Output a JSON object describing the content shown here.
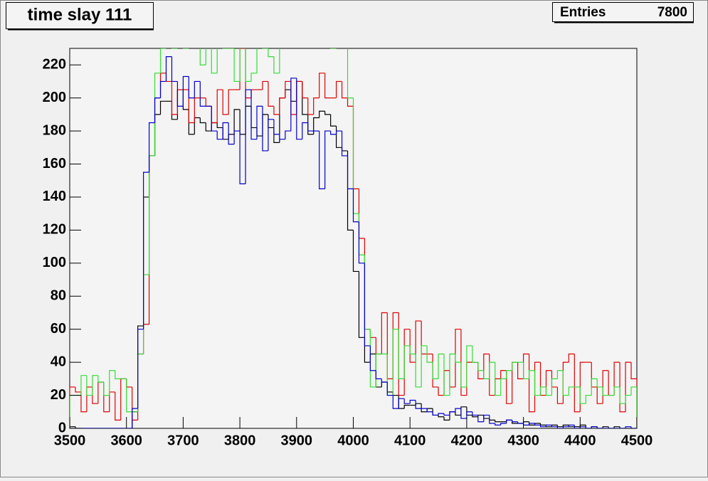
{
  "chart_data": {
    "type": "histogram",
    "title": "time slay 111",
    "stats": {
      "label": "Entries",
      "value": 7800
    },
    "bins": [
      3500,
      3510,
      3520,
      3530,
      3540,
      3550,
      3560,
      3570,
      3580,
      3590,
      3600,
      3610,
      3620,
      3630,
      3640,
      3650,
      3660,
      3670,
      3680,
      3690,
      3700,
      3710,
      3720,
      3730,
      3740,
      3750,
      3760,
      3770,
      3780,
      3790,
      3800,
      3810,
      3820,
      3830,
      3840,
      3850,
      3860,
      3870,
      3880,
      3890,
      3900,
      3910,
      3920,
      3930,
      3940,
      3950,
      3960,
      3970,
      3980,
      3990,
      4000,
      4010,
      4020,
      4030,
      4040,
      4050,
      4060,
      4070,
      4080,
      4090,
      4100,
      4110,
      4120,
      4130,
      4140,
      4150,
      4160,
      4170,
      4180,
      4190,
      4200,
      4210,
      4220,
      4230,
      4240,
      4250,
      4260,
      4270,
      4280,
      4290,
      4300,
      4310,
      4320,
      4330,
      4340,
      4350,
      4360,
      4370,
      4380,
      4390,
      4400,
      4410,
      4420,
      4430,
      4440,
      4450,
      4460,
      4470,
      4480,
      4490,
      4500
    ],
    "series": [
      {
        "color": "#000000",
        "values": [
          1,
          0,
          0,
          0,
          0,
          0,
          0,
          0,
          0,
          0,
          0,
          10,
          62,
          140,
          165,
          190,
          198,
          198,
          187,
          205,
          193,
          178,
          188,
          185,
          180,
          185,
          182,
          175,
          178,
          193,
          178,
          195,
          182,
          177,
          190,
          182,
          173,
          200,
          205,
          198,
          210,
          190,
          178,
          188,
          192,
          190,
          183,
          170,
          168,
          120,
          95,
          55,
          40,
          45,
          25,
          28,
          22,
          20,
          12,
          14,
          14,
          15,
          10,
          12,
          8,
          7,
          5,
          10,
          8,
          13,
          8,
          7,
          8,
          6,
          5,
          4,
          4,
          5,
          3,
          3,
          4,
          2,
          3,
          2,
          1,
          2,
          1,
          2,
          1,
          1,
          2,
          0,
          1,
          0,
          1,
          0,
          1,
          0,
          0,
          0
        ]
      },
      {
        "color": "#e00000",
        "values": [
          25,
          22,
          10,
          25,
          15,
          28,
          10,
          22,
          5,
          30,
          25,
          5,
          45,
          63,
          165,
          200,
          215,
          210,
          190,
          205,
          205,
          185,
          200,
          200,
          195,
          185,
          205,
          190,
          205,
          205,
          230,
          200,
          205,
          205,
          210,
          195,
          190,
          200,
          210,
          190,
          210,
          200,
          190,
          200,
          215,
          200,
          200,
          210,
          200,
          195,
          145,
          115,
          60,
          55,
          45,
          70,
          30,
          70,
          20,
          60,
          40,
          65,
          45,
          45,
          25,
          20,
          35,
          25,
          60,
          20,
          40,
          40,
          30,
          45,
          20,
          30,
          35,
          15,
          40,
          30,
          45,
          10,
          40,
          20,
          35,
          25,
          15,
          40,
          45,
          10,
          40,
          40,
          25,
          15,
          35,
          20,
          40,
          10,
          40,
          30
        ]
      },
      {
        "color": "#33dd33",
        "values": [
          20,
          20,
          32,
          20,
          32,
          28,
          20,
          35,
          30,
          30,
          10,
          10,
          45,
          93,
          165,
          215,
          230,
          240,
          230,
          240,
          230,
          240,
          240,
          220,
          240,
          215,
          240,
          230,
          230,
          210,
          240,
          210,
          215,
          240,
          230,
          225,
          215,
          240,
          240,
          240,
          240,
          240,
          240,
          240,
          240,
          240,
          230,
          240,
          240,
          200,
          130,
          105,
          60,
          25,
          45,
          45,
          20,
          60,
          30,
          50,
          45,
          25,
          50,
          40,
          30,
          45,
          20,
          45,
          40,
          25,
          50,
          40,
          35,
          30,
          40,
          20,
          30,
          35,
          40,
          40,
          30,
          35,
          20,
          25,
          20,
          30,
          35,
          20,
          25,
          25,
          15,
          20,
          30,
          25,
          20,
          20,
          25,
          15,
          20,
          25
        ]
      },
      {
        "color": "#0000cc",
        "values": [
          0,
          0,
          0,
          0,
          0,
          0,
          0,
          0,
          0,
          0,
          0,
          12,
          60,
          155,
          185,
          200,
          210,
          225,
          210,
          195,
          213,
          200,
          210,
          195,
          195,
          180,
          175,
          185,
          172,
          180,
          148,
          205,
          175,
          195,
          168,
          187,
          178,
          175,
          180,
          212,
          175,
          185,
          180,
          180,
          145,
          180,
          178,
          180,
          165,
          145,
          125,
          100,
          50,
          35,
          30,
          28,
          20,
          12,
          18,
          15,
          17,
          12,
          12,
          10,
          8,
          9,
          8,
          10,
          12,
          6,
          10,
          8,
          4,
          8,
          3,
          2,
          3,
          5,
          4,
          3,
          2,
          3,
          2,
          1,
          2,
          1,
          0,
          1,
          2,
          0,
          1,
          0,
          1,
          0,
          0,
          0,
          0,
          0,
          1,
          0
        ]
      }
    ],
    "xlim": [
      3500,
      4500
    ],
    "xticks": [
      3500,
      3600,
      3700,
      3800,
      3900,
      4000,
      4100,
      4200,
      4300,
      4400,
      4500
    ],
    "ylim": [
      0,
      230
    ],
    "yticks": [
      0,
      20,
      40,
      60,
      80,
      100,
      120,
      140,
      160,
      180,
      200,
      220
    ]
  }
}
